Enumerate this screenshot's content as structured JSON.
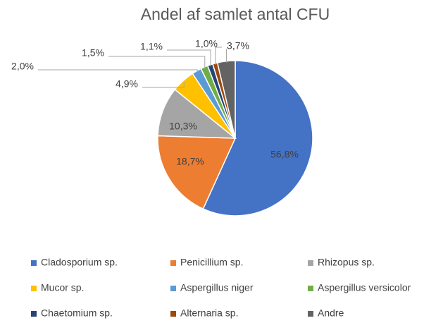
{
  "chart_data": {
    "type": "pie",
    "title": "Andel af samlet antal CFU",
    "categories": [
      "Cladosporium sp.",
      "Penicillium sp.",
      "Rhizopus sp.",
      "Mucor sp.",
      "Aspergillus niger",
      "Aspergillus versicolor",
      "Chaetomium sp.",
      "Alternaria sp.",
      "Andre"
    ],
    "values": [
      56.8,
      18.7,
      10.3,
      4.9,
      2.0,
      1.5,
      1.1,
      1.0,
      3.7
    ],
    "value_labels": [
      "56,8%",
      "18,7%",
      "10,3%",
      "4,9%",
      "2,0%",
      "1,5%",
      "1,1%",
      "1,0%",
      "3,7%"
    ],
    "colors": [
      "#4472c4",
      "#ed7d31",
      "#a5a5a5",
      "#ffc000",
      "#5b9bd5",
      "#70ad47",
      "#264478",
      "#9e480e",
      "#636363"
    ],
    "legend": "bottom"
  }
}
